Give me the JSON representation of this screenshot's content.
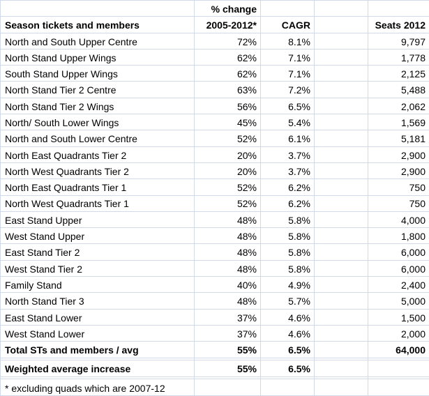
{
  "colors": {
    "gridline": "#d3dae7",
    "text": "#000000",
    "background": "#ffffff"
  },
  "table": {
    "column_semantics": [
      "row-label",
      "pct-change-2005-2012",
      "cagr",
      "spacer",
      "seats-2012"
    ],
    "rows": [
      {
        "cells": [
          "",
          "% change",
          "",
          "",
          ""
        ],
        "bold": true
      },
      {
        "cells": [
          "Season tickets and members",
          "2005-2012*",
          "CAGR",
          "",
          "Seats 2012"
        ],
        "bold": true
      },
      {
        "cells": [
          "North and South Upper Centre",
          "72%",
          "8.1%",
          "",
          "9,797"
        ],
        "bold": false
      },
      {
        "cells": [
          "North Stand Upper Wings",
          "62%",
          "7.1%",
          "",
          "1,778"
        ],
        "bold": false
      },
      {
        "cells": [
          "South Stand Upper Wings",
          "62%",
          "7.1%",
          "",
          "2,125"
        ],
        "bold": false
      },
      {
        "cells": [
          "North Stand Tier 2 Centre",
          "63%",
          "7.2%",
          "",
          "5,488"
        ],
        "bold": false
      },
      {
        "cells": [
          "North Stand Tier 2 Wings",
          "56%",
          "6.5%",
          "",
          "2,062"
        ],
        "bold": false
      },
      {
        "cells": [
          "North/ South Lower Wings",
          "45%",
          "5.4%",
          "",
          "1,569"
        ],
        "bold": false
      },
      {
        "cells": [
          "North and South Lower Centre",
          "52%",
          "6.1%",
          "",
          "5,181"
        ],
        "bold": false
      },
      {
        "cells": [
          "North East Quadrants Tier 2",
          "20%",
          "3.7%",
          "",
          "2,900"
        ],
        "bold": false
      },
      {
        "cells": [
          "North West Quadrants Tier 2",
          "20%",
          "3.7%",
          "",
          "2,900"
        ],
        "bold": false
      },
      {
        "cells": [
          "North East Quadrants Tier 1",
          "52%",
          "6.2%",
          "",
          "750"
        ],
        "bold": false
      },
      {
        "cells": [
          "North West Quadrants Tier 1",
          "52%",
          "6.2%",
          "",
          "750"
        ],
        "bold": false
      },
      {
        "cells": [
          "East Stand Upper",
          "48%",
          "5.8%",
          "",
          "4,000"
        ],
        "bold": false
      },
      {
        "cells": [
          "West Stand Upper",
          "48%",
          "5.8%",
          "",
          "1,800"
        ],
        "bold": false
      },
      {
        "cells": [
          "East Stand Tier 2",
          "48%",
          "5.8%",
          "",
          "6,000"
        ],
        "bold": false
      },
      {
        "cells": [
          "West Stand Tier 2",
          "48%",
          "5.8%",
          "",
          "6,000"
        ],
        "bold": false
      },
      {
        "cells": [
          "Family Stand",
          "40%",
          "4.9%",
          "",
          "2,400"
        ],
        "bold": false
      },
      {
        "cells": [
          "North Stand Tier 3",
          "48%",
          "5.7%",
          "",
          "5,000"
        ],
        "bold": false
      },
      {
        "cells": [
          "East Stand Lower",
          "37%",
          "4.6%",
          "",
          "1,500"
        ],
        "bold": false
      },
      {
        "cells": [
          "West Stand Lower",
          "37%",
          "4.6%",
          "",
          "2,000"
        ],
        "bold": false
      },
      {
        "cells": [
          "Total STs and members / avg",
          "55%",
          "6.5%",
          "",
          "64,000"
        ],
        "bold": true
      },
      {
        "cells": [
          "",
          "",
          "",
          "",
          ""
        ],
        "bold": false
      },
      {
        "cells": [
          "Weighted average increase",
          "55%",
          "6.5%",
          "",
          ""
        ],
        "bold": true
      },
      {
        "cells": [
          "",
          "",
          "",
          "",
          ""
        ],
        "bold": false
      },
      {
        "cells": [
          "* excluding quads which are 2007-12",
          "",
          "",
          "",
          ""
        ],
        "bold": false
      }
    ]
  }
}
